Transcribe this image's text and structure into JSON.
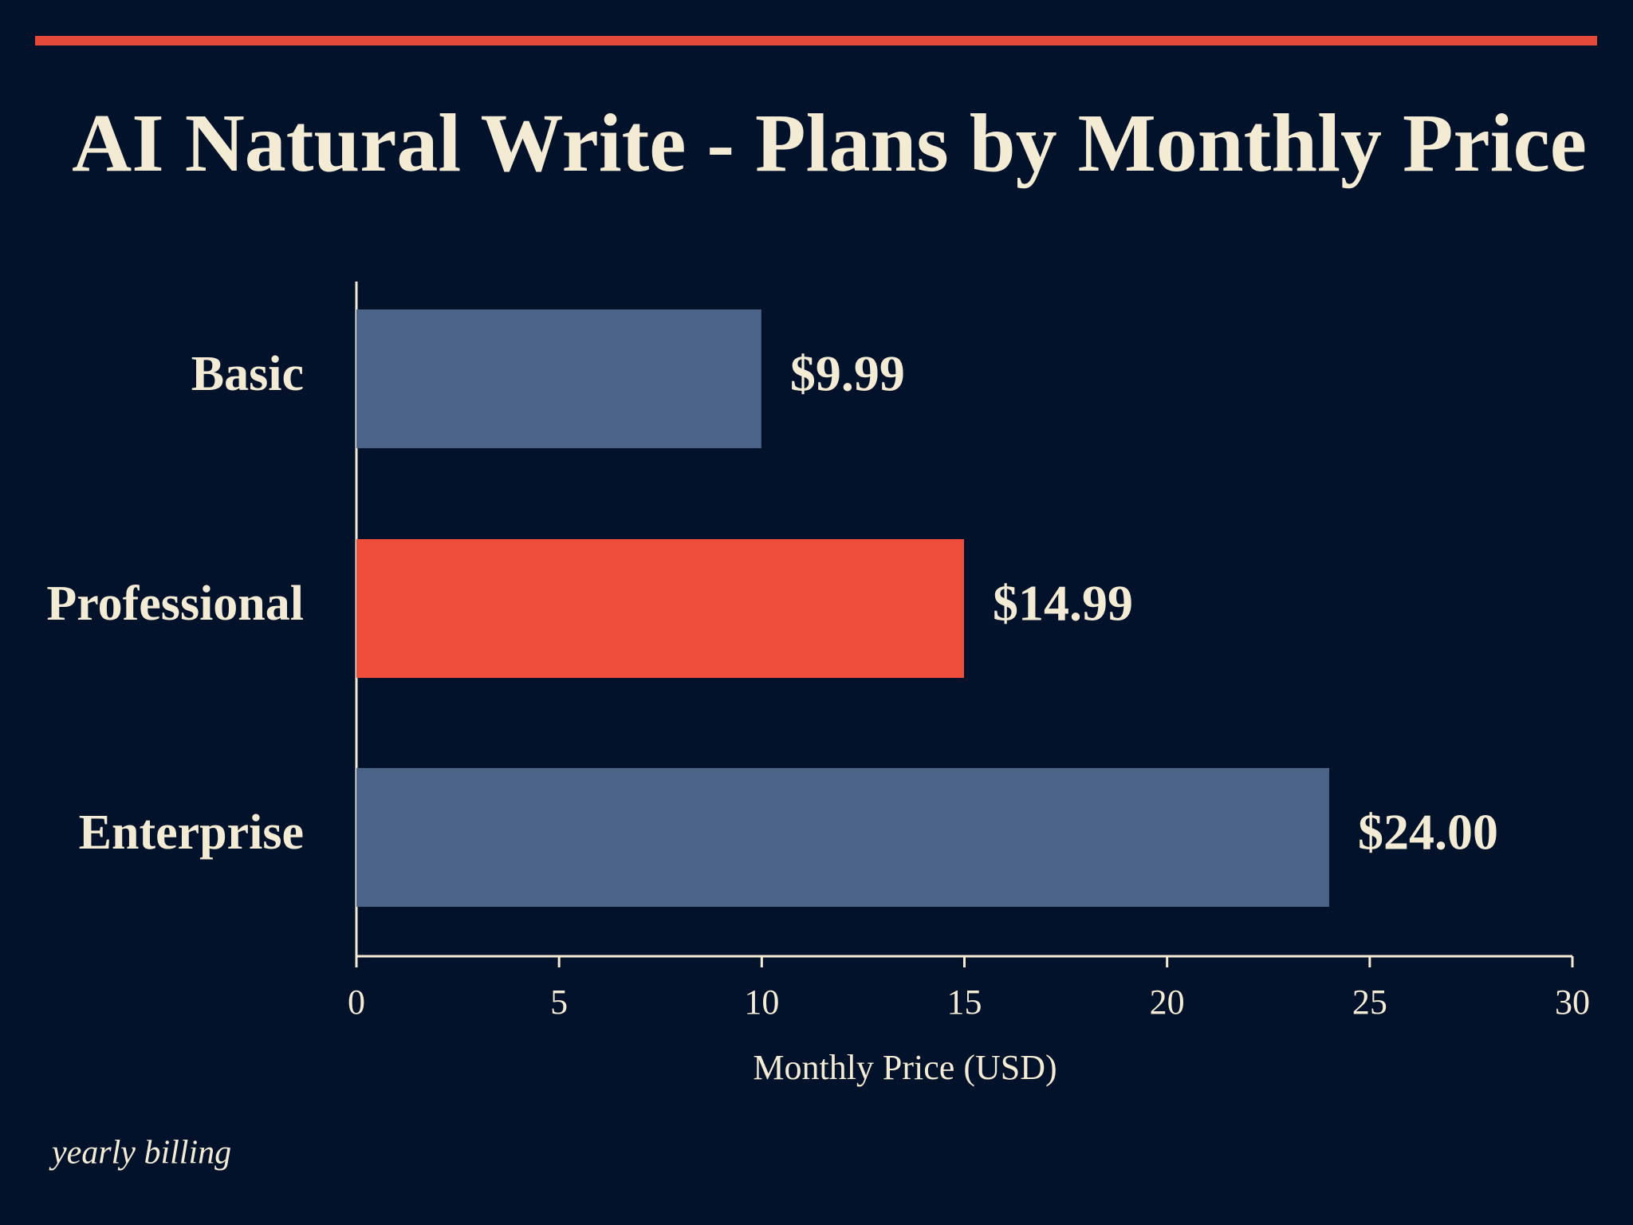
{
  "chart_data": {
    "type": "bar",
    "orientation": "horizontal",
    "title": "AI Natural Write - Plans by Monthly Price",
    "categories": [
      "Basic",
      "Professional",
      "Enterprise"
    ],
    "values": [
      9.99,
      14.99,
      24.0
    ],
    "value_labels": [
      "$9.99",
      "$14.99",
      "$24.00"
    ],
    "colors": [
      "#4a6387",
      "#f04e3c",
      "#4a6387"
    ],
    "xlim": [
      0,
      30
    ],
    "xticks": [
      0,
      5,
      10,
      15,
      20,
      25,
      30
    ],
    "x_label": "Monthly Price (USD)",
    "note": "yearly billing"
  }
}
